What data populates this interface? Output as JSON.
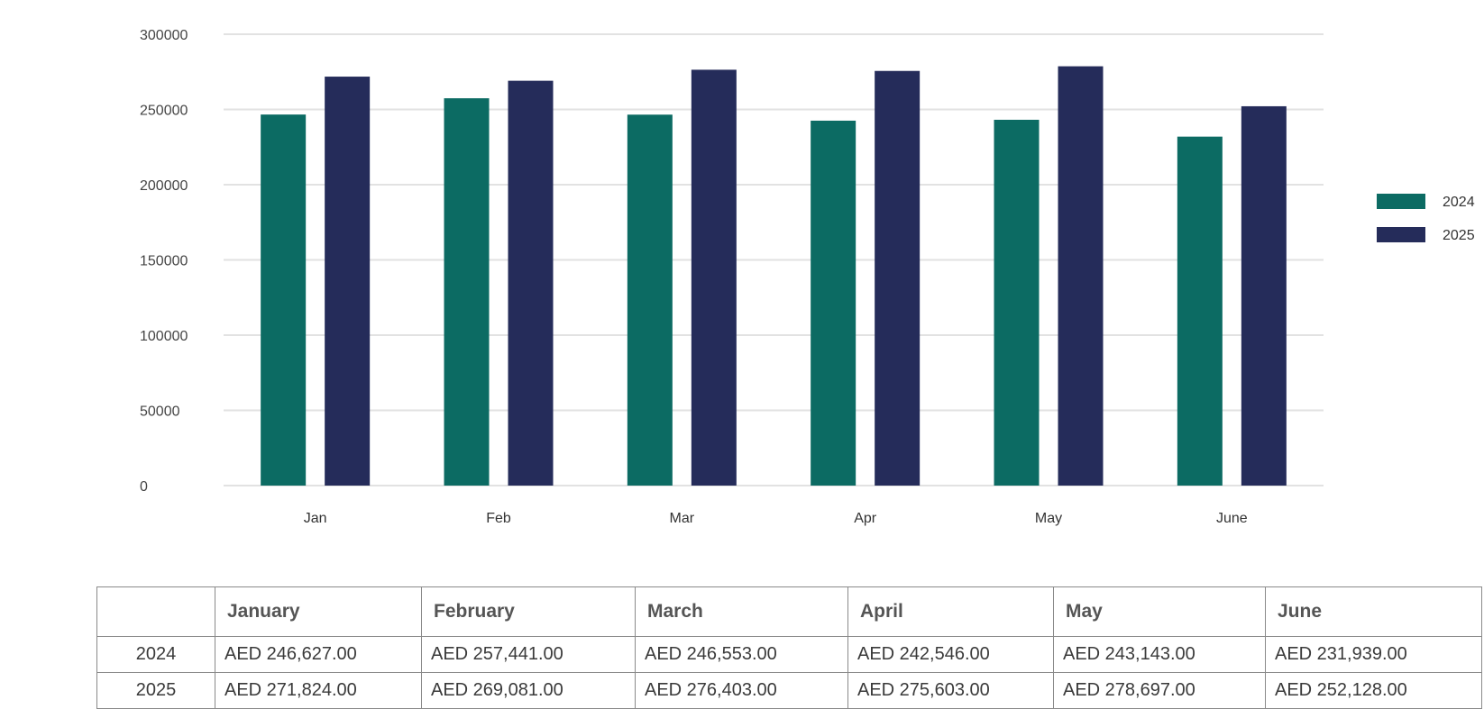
{
  "colors": {
    "series_2024": "#0c6b63",
    "series_2025": "#252c5a",
    "grid": "#e2e2e2"
  },
  "chart_data": {
    "type": "bar",
    "categories": [
      "Jan",
      "Feb",
      "Mar",
      "Apr",
      "May",
      "June"
    ],
    "series": [
      {
        "name": "2024",
        "values": [
          246627,
          257441,
          246553,
          242546,
          243143,
          231939
        ]
      },
      {
        "name": "2025",
        "values": [
          271824,
          269081,
          276403,
          275603,
          278697,
          252128
        ]
      }
    ],
    "ylim": [
      0,
      300000
    ],
    "yticks": [
      "0",
      "50000",
      "100000",
      "150000",
      "200000",
      "250000",
      "300000"
    ],
    "grid": true,
    "legend_position": "right"
  },
  "table": {
    "headers": [
      "",
      "January",
      "February",
      "March",
      "April",
      "May",
      "June"
    ],
    "rows": [
      {
        "year": "2024",
        "cells": [
          "AED 246,627.00",
          "AED 257,441.00",
          "AED 246,553.00",
          "AED 242,546.00",
          "AED 243,143.00",
          "AED 231,939.00"
        ]
      },
      {
        "year": "2025",
        "cells": [
          "AED 271,824.00",
          "AED 269,081.00",
          "AED 276,403.00",
          "AED 275,603.00",
          "AED 278,697.00",
          "AED 252,128.00"
        ]
      }
    ]
  }
}
